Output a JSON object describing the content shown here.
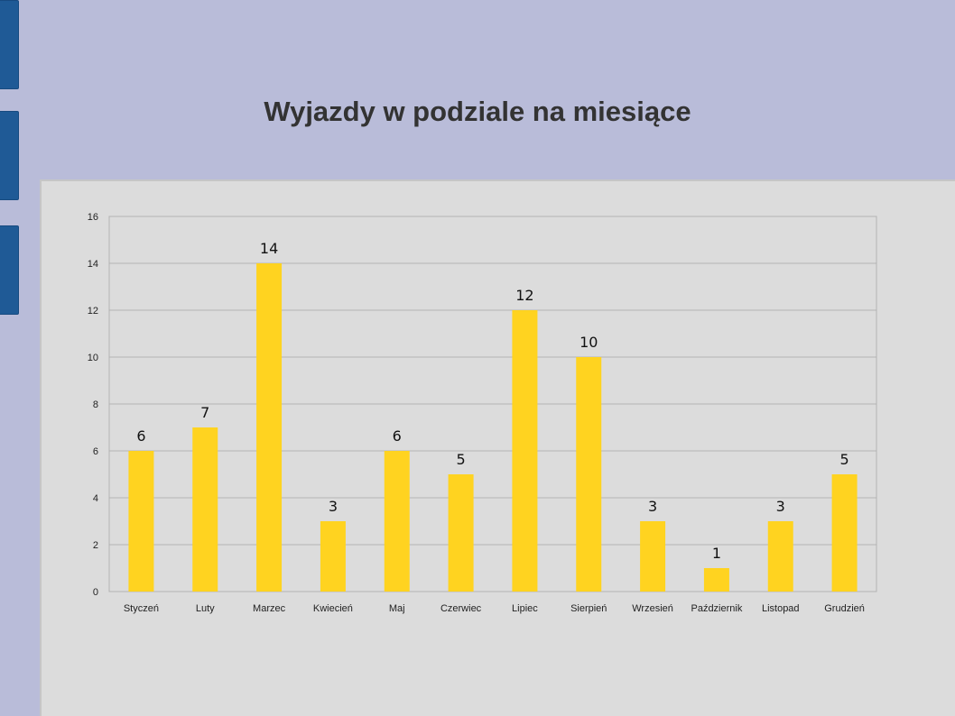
{
  "slide": {
    "title": "Wyjazdy w podziale na miesiące"
  },
  "chart_data": {
    "type": "bar",
    "title": "Wyjazdy w podziale na miesiące",
    "xlabel": "",
    "ylabel": "",
    "categories": [
      "Styczeń",
      "Luty",
      "Marzec",
      "Kwiecień",
      "Maj",
      "Czerwiec",
      "Lipiec",
      "Sierpień",
      "Wrzesień",
      "Październik",
      "Listopad",
      "Grudzień"
    ],
    "values": [
      6,
      7,
      14,
      3,
      6,
      5,
      12,
      10,
      3,
      1,
      3,
      5
    ],
    "ylim": [
      0,
      16
    ],
    "yticks": [
      0,
      2,
      4,
      6,
      8,
      10,
      12,
      14,
      16
    ],
    "grid": true,
    "legend": "none",
    "bar_color": "#ffd320",
    "data_labels": true
  }
}
